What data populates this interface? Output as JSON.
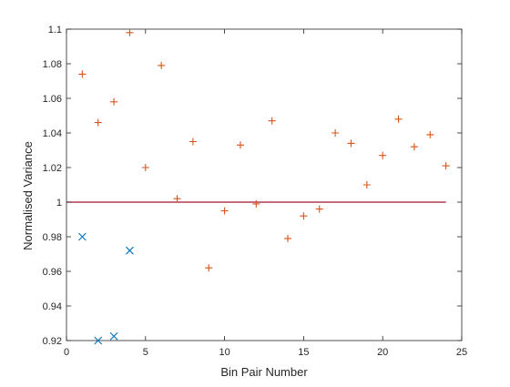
{
  "chart_data": {
    "type": "scatter",
    "title": "",
    "xlabel": "Bin Pair Number",
    "ylabel": "Normalised Variance",
    "xlim": [
      0,
      25
    ],
    "ylim": [
      0.92,
      1.1
    ],
    "x_ticks": [
      0,
      5,
      10,
      15,
      20,
      25
    ],
    "x_tick_labels": [
      "0",
      "5",
      "10",
      "15",
      "20",
      "25"
    ],
    "y_ticks": [
      0.92,
      0.94,
      0.96,
      0.98,
      1.0,
      1.02,
      1.04,
      1.06,
      1.08,
      1.1
    ],
    "y_tick_labels": [
      "0.92",
      "0.94",
      "0.96",
      "0.98",
      "1",
      "1.02",
      "1.04",
      "1.06",
      "1.08",
      "1.1"
    ],
    "grid": false,
    "box": true,
    "series": [
      {
        "marker": "x",
        "color": "#0072BD",
        "x": [
          1,
          2,
          3,
          4
        ],
        "y": [
          0.98,
          0.92,
          0.9225,
          0.972
        ]
      },
      {
        "marker": "+",
        "color": "#D95319",
        "x": [
          1,
          2,
          3,
          4,
          5,
          6,
          7,
          8,
          9,
          10,
          11,
          12,
          13,
          14,
          15,
          16,
          17,
          18,
          19,
          20,
          21,
          22,
          23,
          24
        ],
        "y": [
          1.074,
          1.046,
          1.058,
          1.098,
          1.02,
          1.079,
          1.002,
          1.035,
          0.962,
          0.995,
          1.033,
          0.999,
          1.047,
          0.979,
          0.992,
          0.996,
          1.04,
          1.034,
          1.01,
          1.027,
          1.048,
          1.032,
          1.039,
          1.021
        ]
      }
    ],
    "reference_line": {
      "type": "horizontal",
      "y": 1.0,
      "x_range": [
        0,
        24
      ],
      "color": "#A2142F"
    }
  }
}
